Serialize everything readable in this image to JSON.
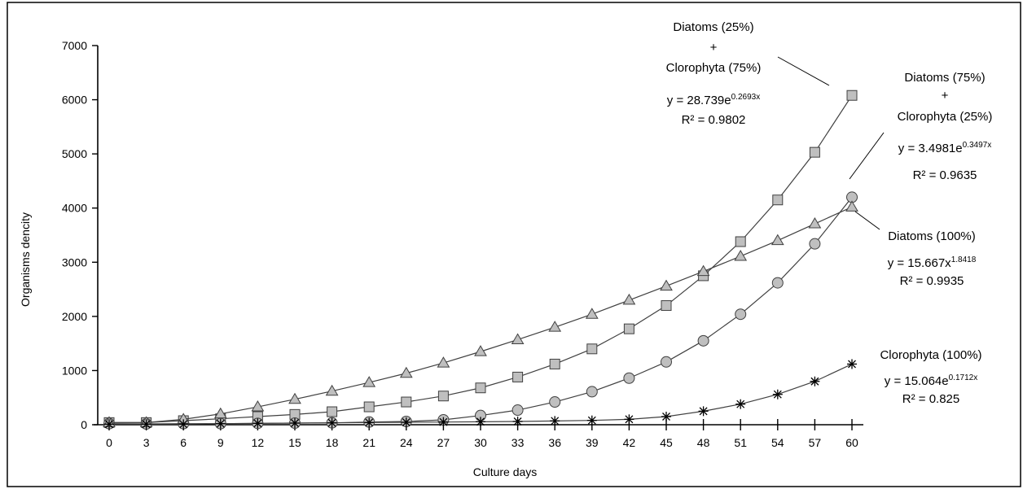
{
  "chart_data": {
    "type": "line",
    "xlabel": "Culture days",
    "ylabel": "Organisms dencity",
    "xlim": [
      0,
      60
    ],
    "ylim": [
      0,
      7000
    ],
    "x_ticks": [
      0,
      3,
      6,
      9,
      12,
      15,
      18,
      21,
      24,
      27,
      30,
      33,
      36,
      39,
      42,
      45,
      48,
      51,
      54,
      57,
      60
    ],
    "y_ticks": [
      0,
      1000,
      2000,
      3000,
      4000,
      5000,
      6000,
      7000
    ],
    "grid": false,
    "legend": "none",
    "x": [
      0,
      3,
      6,
      9,
      12,
      15,
      18,
      21,
      24,
      27,
      30,
      33,
      36,
      39,
      42,
      45,
      48,
      51,
      54,
      57,
      60
    ],
    "series": [
      {
        "marker": "square",
        "values": [
          40,
          40,
          75,
          110,
          150,
          190,
          240,
          330,
          420,
          530,
          680,
          880,
          1120,
          1400,
          1770,
          2200,
          2750,
          3380,
          4150,
          5030,
          6080
        ]
      },
      {
        "marker": "circle",
        "values": [
          20,
          15,
          20,
          20,
          25,
          30,
          35,
          50,
          60,
          90,
          170,
          270,
          420,
          610,
          860,
          1160,
          1550,
          2040,
          2620,
          3340,
          4200
        ]
      },
      {
        "marker": "triangle",
        "values": [
          40,
          40,
          100,
          200,
          330,
          470,
          620,
          780,
          950,
          1140,
          1350,
          1570,
          1800,
          2040,
          2300,
          2560,
          2830,
          3110,
          3400,
          3710,
          4020
        ]
      },
      {
        "marker": "star",
        "values": [
          10,
          10,
          10,
          20,
          25,
          30,
          35,
          40,
          45,
          50,
          55,
          60,
          70,
          80,
          100,
          150,
          250,
          380,
          560,
          800,
          1120
        ]
      }
    ],
    "annotations": [
      {
        "lines": [
          {
            "text": "Diatoms (25%)"
          },
          {
            "text": "+"
          },
          {
            "text": "Clorophyta (75%)"
          },
          {
            "base": "y = 28.739e",
            "sup": "0.2693x"
          },
          {
            "text": "R² = 0.9802"
          }
        ]
      },
      {
        "lines": [
          {
            "text": "Diatoms (75%)"
          },
          {
            "text": "+"
          },
          {
            "text": "Clorophyta (25%)"
          },
          {
            "base": "y = 3.4981e",
            "sup": "0.3497x"
          },
          {
            "text": "R² = 0.9635"
          }
        ]
      },
      {
        "lines": [
          {
            "text": "Diatoms (100%)"
          },
          {
            "base": "y = 15.667x",
            "sup": "1.8418"
          },
          {
            "text": "R² = 0.9935"
          }
        ]
      },
      {
        "lines": [
          {
            "text": "Clorophyta (100%)"
          },
          {
            "base": "y = 15.064e",
            "sup": "0.1712x"
          },
          {
            "text": "R² = 0.825"
          }
        ]
      }
    ]
  }
}
